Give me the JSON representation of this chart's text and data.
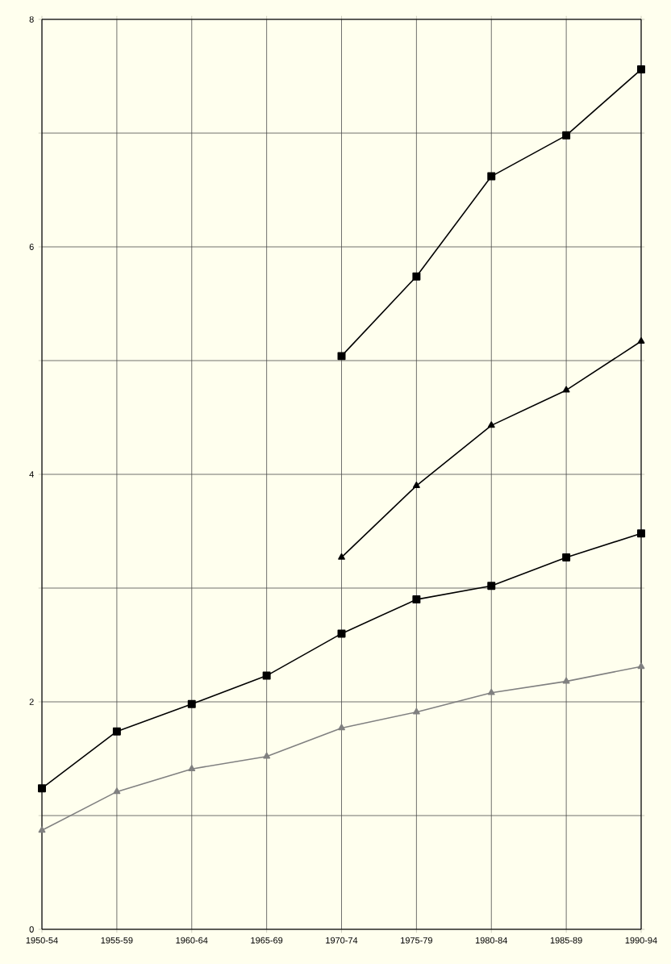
{
  "chart_data": {
    "type": "line",
    "categories": [
      "1950-54",
      "1955-59",
      "1960-64",
      "1965-69",
      "1970-74",
      "1975-79",
      "1980-84",
      "1985-89",
      "1990-94"
    ],
    "series": [
      {
        "color": "#000000",
        "marker": "square",
        "values": [
          null,
          null,
          null,
          null,
          5.04,
          5.74,
          6.62,
          6.98,
          7.56
        ]
      },
      {
        "color": "#000000",
        "marker": "triangle",
        "values": [
          null,
          null,
          null,
          null,
          3.27,
          3.9,
          4.43,
          4.74,
          5.17
        ]
      },
      {
        "color": "#000000",
        "marker": "square",
        "values": [
          1.24,
          1.74,
          1.98,
          2.23,
          2.6,
          2.9,
          3.02,
          3.27,
          3.48
        ]
      },
      {
        "color": "#808080",
        "marker": "triangle",
        "values": [
          0.87,
          1.21,
          1.41,
          1.52,
          1.77,
          1.91,
          2.08,
          2.18,
          2.31
        ]
      }
    ],
    "ylim": [
      0,
      8
    ],
    "yticks": [
      0,
      {
        "value": 1,
        "label": null
      },
      2,
      {
        "value": 3,
        "label": null
      },
      4,
      {
        "value": 5,
        "label": null
      },
      6,
      {
        "value": 7,
        "label": null
      },
      8
    ],
    "grid": true,
    "line_style": "solid"
  }
}
